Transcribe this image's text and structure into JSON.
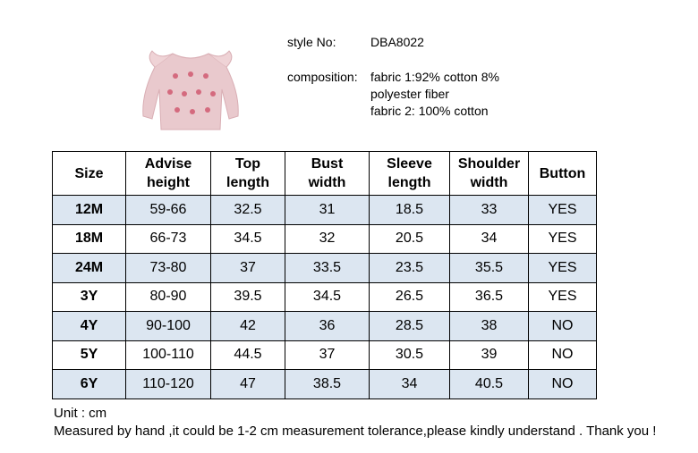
{
  "product": {
    "style_label": "style No:",
    "style_value": "DBA8022",
    "composition_label": "composition:",
    "composition_lines": [
      "fabric 1:92% cotton 8%",
      "polyester fiber",
      "fabric 2: 100% cotton"
    ]
  },
  "table": {
    "headers": [
      "Size",
      "Advise height",
      "Top length",
      "Bust width",
      "Sleeve length",
      "Shoulder width",
      "Button"
    ],
    "rows": [
      [
        "12M",
        "59-66",
        "32.5",
        "31",
        "18.5",
        "33",
        "YES"
      ],
      [
        "18M",
        "66-73",
        "34.5",
        "32",
        "20.5",
        "34",
        "YES"
      ],
      [
        "24M",
        "73-80",
        "37",
        "33.5",
        "23.5",
        "35.5",
        "YES"
      ],
      [
        "3Y",
        "80-90",
        "39.5",
        "34.5",
        "26.5",
        "36.5",
        "YES"
      ],
      [
        "4Y",
        "90-100",
        "42",
        "36",
        "28.5",
        "38",
        "NO"
      ],
      [
        "5Y",
        "100-110",
        "44.5",
        "37",
        "30.5",
        "39",
        "NO"
      ],
      [
        "6Y",
        "110-120",
        "47",
        "38.5",
        "34",
        "40.5",
        "NO"
      ]
    ]
  },
  "notes": [
    "Unit : cm",
    "Measured by hand ,it could be 1-2 cm measurement tolerance,please kindly understand . Thank you !"
  ]
}
